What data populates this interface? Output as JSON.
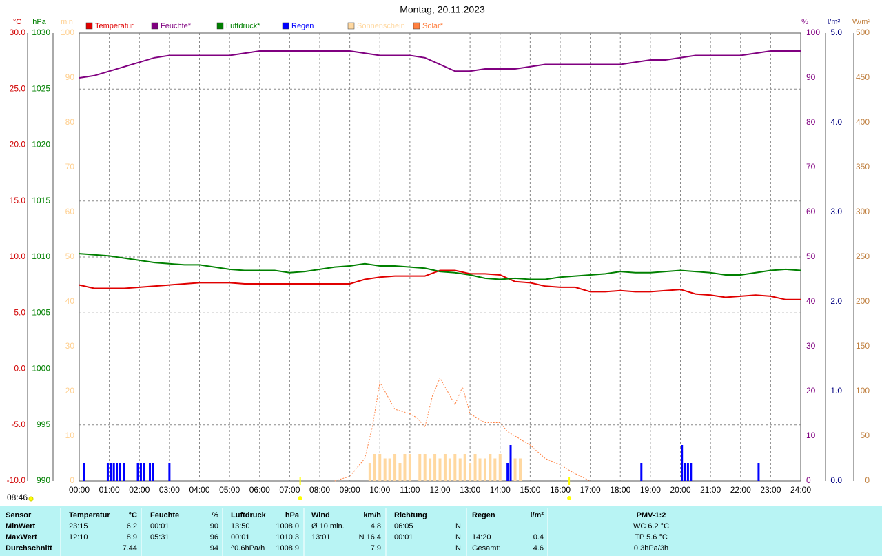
{
  "chart_data": {
    "type": "line",
    "title": "Montag, 20.11.2023",
    "note": "08:46",
    "grid": true,
    "xlim": [
      0,
      24
    ],
    "xticks": [
      {
        "value": 0,
        "label": "00:00"
      },
      {
        "value": 1,
        "label": "01:00"
      },
      {
        "value": 2,
        "label": "02:00"
      },
      {
        "value": 3,
        "label": "03:00"
      },
      {
        "value": 4,
        "label": "04:00"
      },
      {
        "value": 5,
        "label": "05:00"
      },
      {
        "value": 6,
        "label": "06:00"
      },
      {
        "value": 7,
        "label": "07:00"
      },
      {
        "value": 8,
        "label": "08:00"
      },
      {
        "value": 9,
        "label": "09:00"
      },
      {
        "value": 10,
        "label": "10:00"
      },
      {
        "value": 11,
        "label": "11:00"
      },
      {
        "value": 12,
        "label": "12:00"
      },
      {
        "value": 13,
        "label": "13:00"
      },
      {
        "value": 14,
        "label": "14:00"
      },
      {
        "value": 15,
        "label": "15:00"
      },
      {
        "value": 16,
        "label": "16:00"
      },
      {
        "value": 17,
        "label": "17:00"
      },
      {
        "value": 18,
        "label": "18:00"
      },
      {
        "value": 19,
        "label": "19:00"
      },
      {
        "value": 20,
        "label": "20:00"
      },
      {
        "value": 21,
        "label": "21:00"
      },
      {
        "value": 22,
        "label": "22:00"
      },
      {
        "value": 23,
        "label": "23:00"
      },
      {
        "value": 24,
        "label": "24:00"
      }
    ],
    "sun_markers": [
      7.35,
      16.3
    ],
    "axes": [
      {
        "label": "°C",
        "lim": [
          -10,
          30
        ],
        "color": "#d00000",
        "ticks": [
          {
            "value": -10,
            "label": "-10.0"
          },
          {
            "value": -5,
            "label": "-5.0"
          },
          {
            "value": 0,
            "label": "0.0"
          },
          {
            "value": 5,
            "label": "5.0"
          },
          {
            "value": 10,
            "label": "10.0"
          },
          {
            "value": 15,
            "label": "15.0"
          },
          {
            "value": 20,
            "label": "20.0"
          },
          {
            "value": 25,
            "label": "25.0"
          },
          {
            "value": 30,
            "label": "30.0"
          }
        ]
      },
      {
        "label": "hPa",
        "lim": [
          990,
          1030
        ],
        "color": "#008000",
        "ticks": [
          990,
          995,
          1000,
          1005,
          1010,
          1015,
          1020,
          1025,
          1030
        ]
      },
      {
        "label": "min",
        "lim": [
          0,
          100
        ],
        "color": "#ffd090",
        "ticks": [
          0,
          10,
          20,
          30,
          40,
          50,
          60,
          70,
          80,
          90,
          100
        ]
      },
      {
        "label": "%",
        "lim": [
          0,
          100
        ],
        "color": "#800080",
        "ticks": [
          0,
          10,
          20,
          30,
          40,
          50,
          60,
          70,
          80,
          90,
          100
        ]
      },
      {
        "label": "l/m²",
        "lim": [
          0,
          5
        ],
        "color": "#000080",
        "ticks": [
          {
            "value": 0,
            "label": "0.0"
          },
          {
            "value": 1,
            "label": "1.0"
          },
          {
            "value": 2,
            "label": "2.0"
          },
          {
            "value": 3,
            "label": "3.0"
          },
          {
            "value": 4,
            "label": "4.0"
          },
          {
            "value": 5,
            "label": "5.0"
          }
        ]
      },
      {
        "label": "W/m²",
        "lim": [
          0,
          500
        ],
        "color": "#c08040",
        "ticks": [
          0,
          50,
          100,
          150,
          200,
          250,
          300,
          350,
          400,
          450,
          500
        ]
      }
    ],
    "series": [
      {
        "name": "Temperatur",
        "color": "#e00000",
        "type": "line",
        "axis": 0,
        "x": [
          0,
          0.5,
          1,
          1.5,
          2,
          2.5,
          3,
          3.5,
          4,
          4.5,
          5,
          5.5,
          6,
          6.5,
          7,
          7.5,
          8,
          8.5,
          9,
          9.5,
          10,
          10.5,
          11,
          11.5,
          12,
          12.5,
          13,
          13.5,
          14,
          14.5,
          15,
          15.5,
          16,
          16.5,
          17,
          17.5,
          18,
          18.5,
          19,
          19.5,
          20,
          20.5,
          21,
          21.5,
          22,
          22.5,
          23,
          23.5,
          24
        ],
        "values": [
          7.5,
          7.2,
          7.2,
          7.2,
          7.3,
          7.4,
          7.5,
          7.6,
          7.7,
          7.7,
          7.7,
          7.6,
          7.6,
          7.6,
          7.6,
          7.6,
          7.6,
          7.6,
          7.6,
          8.0,
          8.2,
          8.3,
          8.3,
          8.3,
          8.8,
          8.8,
          8.5,
          8.5,
          8.4,
          7.8,
          7.7,
          7.4,
          7.3,
          7.3,
          6.9,
          6.9,
          7.0,
          6.9,
          6.9,
          7.0,
          7.1,
          6.7,
          6.6,
          6.4,
          6.5,
          6.6,
          6.5,
          6.2,
          6.2
        ]
      },
      {
        "name": "Feuchte*",
        "color": "#800080",
        "type": "line",
        "axis": 3,
        "x": [
          0,
          0.5,
          1,
          1.5,
          2,
          2.5,
          3,
          3.5,
          4,
          4.5,
          5,
          5.5,
          6,
          6.5,
          7,
          7.5,
          8,
          8.5,
          9,
          9.5,
          10,
          10.5,
          11,
          11.5,
          12,
          12.5,
          13,
          13.5,
          14,
          14.5,
          15,
          15.5,
          16,
          16.5,
          17,
          17.5,
          18,
          18.5,
          19,
          19.5,
          20,
          20.5,
          21,
          21.5,
          22,
          22.5,
          23,
          23.5,
          24
        ],
        "values": [
          90,
          90.5,
          91.5,
          92.5,
          93.5,
          94.5,
          95,
          95,
          95,
          95,
          95,
          95.5,
          96,
          96,
          96,
          96,
          96,
          96,
          96,
          95.5,
          95,
          95,
          95,
          94.5,
          93,
          91.5,
          91.5,
          92,
          92,
          92,
          92.5,
          93,
          93,
          93,
          93,
          93,
          93,
          93.5,
          94,
          94,
          94.5,
          95,
          95,
          95,
          95,
          95.5,
          96,
          96,
          96
        ]
      },
      {
        "name": "Luftdruck*",
        "color": "#008000",
        "type": "line",
        "axis": 1,
        "x": [
          0,
          0.5,
          1,
          1.5,
          2,
          2.5,
          3,
          3.5,
          4,
          4.5,
          5,
          5.5,
          6,
          6.5,
          7,
          7.5,
          8,
          8.5,
          9,
          9.5,
          10,
          10.5,
          11,
          11.5,
          12,
          12.5,
          13,
          13.5,
          14,
          14.5,
          15,
          15.5,
          16,
          16.5,
          17,
          17.5,
          18,
          18.5,
          19,
          19.5,
          20,
          20.5,
          21,
          21.5,
          22,
          22.5,
          23,
          23.5,
          24
        ],
        "values": [
          1010.3,
          1010.2,
          1010.1,
          1009.9,
          1009.7,
          1009.5,
          1009.4,
          1009.3,
          1009.3,
          1009.1,
          1008.9,
          1008.8,
          1008.8,
          1008.8,
          1008.6,
          1008.7,
          1008.9,
          1009.1,
          1009.2,
          1009.4,
          1009.2,
          1009.2,
          1009.1,
          1009.0,
          1008.7,
          1008.6,
          1008.4,
          1008.1,
          1008.0,
          1008.1,
          1008.0,
          1008.0,
          1008.2,
          1008.3,
          1008.4,
          1008.5,
          1008.7,
          1008.6,
          1008.6,
          1008.7,
          1008.8,
          1008.7,
          1008.6,
          1008.4,
          1008.4,
          1008.6,
          1008.8,
          1008.9,
          1008.8
        ]
      },
      {
        "name": "Regen",
        "color": "#0000ff",
        "type": "bar",
        "axis": 4,
        "x": [
          0.15,
          0.95,
          1.05,
          1.15,
          1.25,
          1.35,
          1.5,
          1.95,
          2.05,
          2.15,
          2.35,
          2.45,
          3.0,
          14.25,
          14.35,
          18.7,
          20.05,
          20.15,
          20.25,
          20.35,
          22.6
        ],
        "values": [
          0.2,
          0.2,
          0.2,
          0.2,
          0.2,
          0.2,
          0.2,
          0.2,
          0.2,
          0.2,
          0.2,
          0.2,
          0.2,
          0.2,
          0.4,
          0.2,
          0.4,
          0.2,
          0.2,
          0.2,
          0.2
        ]
      },
      {
        "name": "Sonnenschein",
        "color": "#ffd8a0",
        "type": "bar",
        "axis": 2,
        "x": [
          9.67,
          9.83,
          10.0,
          10.17,
          10.33,
          10.5,
          10.67,
          10.83,
          11.0,
          11.33,
          11.5,
          11.67,
          11.83,
          12.0,
          12.17,
          12.33,
          12.5,
          12.67,
          12.83,
          13.0,
          13.17,
          13.33,
          13.5,
          13.67,
          13.83,
          14.0,
          14.5,
          14.67
        ],
        "values": [
          4,
          6,
          6,
          5,
          5,
          6,
          4,
          6,
          6,
          6,
          6,
          5,
          6,
          5,
          6,
          5,
          6,
          5,
          6,
          4,
          6,
          5,
          5,
          6,
          5,
          6,
          5,
          5
        ]
      },
      {
        "name": "Solar*",
        "color": "#ff8040",
        "type": "dotted",
        "axis": 5,
        "x": [
          8.5,
          9,
          9.5,
          9.75,
          10,
          10.25,
          10.5,
          11,
          11.25,
          11.5,
          11.75,
          12,
          12.25,
          12.5,
          12.75,
          13,
          13.5,
          14,
          14.25,
          14.5,
          15,
          15.5,
          16,
          16.5,
          17
        ],
        "values": [
          0,
          5,
          25,
          60,
          110,
          95,
          80,
          75,
          70,
          60,
          95,
          115,
          100,
          85,
          105,
          75,
          65,
          65,
          55,
          50,
          40,
          25,
          18,
          8,
          0
        ]
      }
    ]
  },
  "stats_table": {
    "rows": [
      [
        "Sensor",
        "Temperatur",
        "°C",
        "Feuchte",
        "%",
        "Luftdruck",
        "hPa",
        "Wind",
        "km/h",
        "Richtung",
        null,
        "Regen",
        "l/m²",
        "PMV-1:2"
      ],
      [
        "MinWert",
        "23:15",
        "6.2",
        "00:01",
        "90",
        "13:50",
        "1008.0",
        "Ø 10 min.",
        "4.8",
        "06:05",
        "N",
        null,
        null,
        "WC 6.2 °C"
      ],
      [
        "MaxWert",
        "12:10",
        "8.9",
        "05:31",
        "96",
        "00:01",
        "1010.3",
        "13:01",
        "N 16.4",
        "00:01",
        "N",
        "14:20",
        "0.4",
        "TP 5.6 °C"
      ],
      [
        "Durchschnitt",
        null,
        "7.44",
        null,
        "94",
        "^0.6hPa/h",
        "1008.9",
        null,
        "7.9",
        null,
        "N",
        "Gesamt:",
        "4.6",
        "0.3hPa/3h"
      ]
    ]
  }
}
